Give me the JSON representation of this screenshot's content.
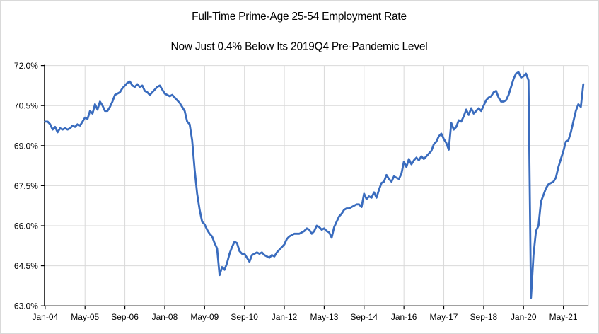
{
  "chart": {
    "title": "Full-Time Prime-Age 25-54 Employment Rate",
    "subtitle": "Now Just 0.4% Below Its 2019Q4 Pre-Pandemic Level"
  },
  "colors": {
    "line": "#3A6CBE",
    "grid": "#D9D9D9",
    "axis": "#000000",
    "label": "#000000",
    "background": "#FFFFFF"
  },
  "chart_data": {
    "type": "line",
    "title": "Full-Time Prime-Age 25-54 Employment Rate",
    "subtitle": "Now Just 0.4% Below Its 2019Q4 Pre-Pandemic Level",
    "unit": "%",
    "x_start": "Jan-2004",
    "x_end": "Jan-2022",
    "x_frequency": "monthly",
    "x_tick_labels": [
      "Jan-04",
      "May-05",
      "Sep-06",
      "Jan-08",
      "May-09",
      "Sep-10",
      "Jan-12",
      "May-13",
      "Sep-14",
      "Jan-16",
      "May-17",
      "Sep-18",
      "Jan-20",
      "May-21"
    ],
    "x_tick_interval_months": 16,
    "y_tick_labels": [
      "63.0%",
      "64.5%",
      "66.0%",
      "67.5%",
      "69.0%",
      "70.5%",
      "72.0%"
    ],
    "ylim": [
      63.0,
      72.0
    ],
    "y_tick_step": 1.5,
    "grid": true,
    "legend": "none",
    "values": [
      69.9,
      69.9,
      69.8,
      69.6,
      69.7,
      69.5,
      69.65,
      69.6,
      69.65,
      69.6,
      69.65,
      69.75,
      69.7,
      69.8,
      69.75,
      69.9,
      70.05,
      70.0,
      70.3,
      70.2,
      70.55,
      70.35,
      70.65,
      70.5,
      70.3,
      70.3,
      70.45,
      70.65,
      70.9,
      70.95,
      71.0,
      71.15,
      71.25,
      71.35,
      71.4,
      71.25,
      71.2,
      71.3,
      71.2,
      71.25,
      71.05,
      71.0,
      70.9,
      71.0,
      71.1,
      71.2,
      71.25,
      71.1,
      70.95,
      70.9,
      70.85,
      70.9,
      70.8,
      70.7,
      70.6,
      70.45,
      70.3,
      69.9,
      69.8,
      69.2,
      68.1,
      67.2,
      66.6,
      66.15,
      66.05,
      65.85,
      65.7,
      65.6,
      65.35,
      65.15,
      64.15,
      64.45,
      64.35,
      64.6,
      64.95,
      65.2,
      65.4,
      65.35,
      65.05,
      64.95,
      64.95,
      64.8,
      64.65,
      64.9,
      64.95,
      65.0,
      64.95,
      65.0,
      64.9,
      64.85,
      64.8,
      64.9,
      64.85,
      65.0,
      65.1,
      65.2,
      65.3,
      65.5,
      65.6,
      65.65,
      65.7,
      65.7,
      65.7,
      65.75,
      65.8,
      65.9,
      65.85,
      65.7,
      65.8,
      66.0,
      65.95,
      65.85,
      65.9,
      65.8,
      65.75,
      65.55,
      65.95,
      66.15,
      66.35,
      66.45,
      66.6,
      66.65,
      66.65,
      66.7,
      66.75,
      66.8,
      66.8,
      66.7,
      67.2,
      67.0,
      67.1,
      67.05,
      67.25,
      67.05,
      67.35,
      67.6,
      67.65,
      67.9,
      67.75,
      67.65,
      67.85,
      67.8,
      67.75,
      67.95,
      68.4,
      68.2,
      68.5,
      68.3,
      68.45,
      68.55,
      68.45,
      68.6,
      68.5,
      68.6,
      68.7,
      68.8,
      69.05,
      69.15,
      69.35,
      69.45,
      69.25,
      69.1,
      68.85,
      69.85,
      69.6,
      69.7,
      69.95,
      69.9,
      70.1,
      70.35,
      70.15,
      70.4,
      70.2,
      70.3,
      70.4,
      70.3,
      70.5,
      70.7,
      70.8,
      70.85,
      71.0,
      71.05,
      70.8,
      70.65,
      70.65,
      70.7,
      70.9,
      71.2,
      71.5,
      71.7,
      71.75,
      71.55,
      71.6,
      71.7,
      71.45,
      63.3,
      64.9,
      65.8,
      66.0,
      66.9,
      67.15,
      67.4,
      67.55,
      67.6,
      67.65,
      67.8,
      68.2,
      68.5,
      68.8,
      69.15,
      69.2,
      69.5,
      69.9,
      70.3,
      70.55,
      70.45,
      71.3
    ]
  }
}
